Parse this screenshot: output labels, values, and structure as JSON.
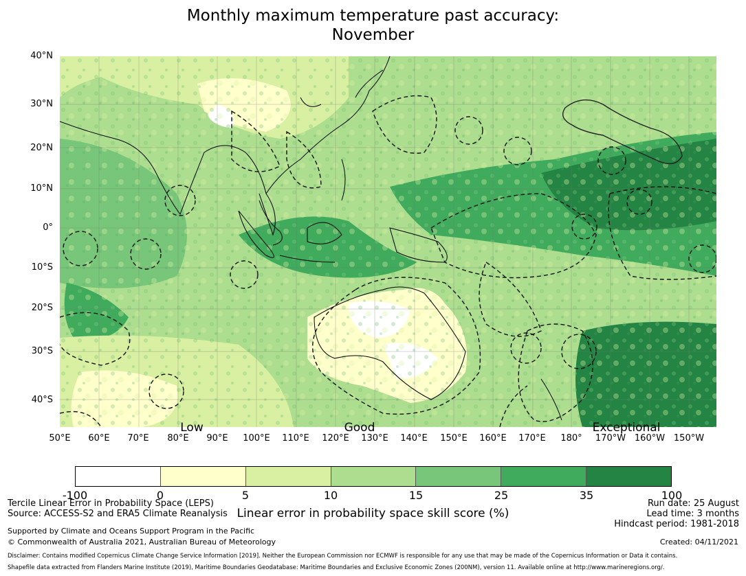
{
  "title": {
    "line1": "Monthly maximum temperature past accuracy:",
    "line2": "November"
  },
  "map": {
    "lat_labels": [
      "40°N",
      "30°N",
      "20°N",
      "10°N",
      "0°",
      "10°S",
      "20°S",
      "30°S",
      "40°S"
    ],
    "lon_labels": [
      "50°E",
      "60°E",
      "70°E",
      "80°E",
      "90°E",
      "100°E",
      "110°E",
      "120°E",
      "130°E",
      "140°E",
      "150°E",
      "160°E",
      "170°E",
      "180°",
      "170°W",
      "160°W",
      "150°W"
    ],
    "category_labels": [
      "Low",
      "Good",
      "Exceptional"
    ],
    "colors": {
      "bin_0": "#ffffff",
      "bin_1": "#ffffcc",
      "bin_2": "#d9f0a3",
      "bin_3": "#addd8e",
      "bin_4": "#78c679",
      "bin_5": "#41ab5d",
      "bin_6": "#238443"
    }
  },
  "colorbar": {
    "ticks": [
      "-100",
      "0",
      "5",
      "10",
      "15",
      "25",
      "35",
      "100"
    ],
    "colors": [
      "#ffffff",
      "#ffffcc",
      "#d9f0a3",
      "#addd8e",
      "#78c679",
      "#41ab5d",
      "#238443"
    ],
    "title": "Linear error in probability space skill score (%)"
  },
  "info": {
    "method": "Tercile Linear Error in Probability Space (LEPS)",
    "source": "Source: ACCESS-S2 and ERA5 Climate Reanalysis",
    "supported": "Supported by Climate and Oceans Support Program in the Pacific",
    "copyright": "© Commonwealth of Australia 2021, Australian Bureau of Meteorology",
    "run_date": "Run date: 25 August",
    "lead_time": "Lead time: 3 months",
    "hindcast": "Hindcast period: 1981-2018",
    "created": "Created: 04/11/2021",
    "disclaimer1": "Disclaimer: Contains modified Copernicus Climate Change Service Information [2019]. Neither the European Commission nor ECMWF is responsible for any use that may be made of the Copernicus Information or Data it contains.",
    "disclaimer2": "Shapefile data extracted from Flanders Marine Institute (2019), Maritime Boundaries Geodatabase: Maritime Boundaries and Exclusive Economic Zones (200NM), version 11. Available online at http://www.marineregions.org/."
  }
}
